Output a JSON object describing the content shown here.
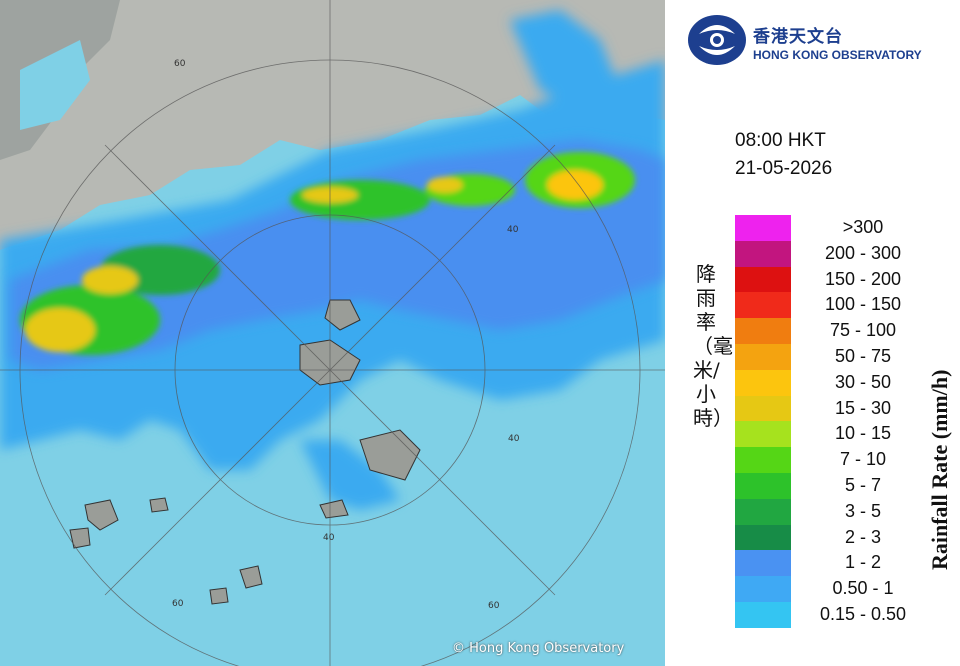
{
  "header": {
    "logo_zh": "香港天文台",
    "logo_en": "HONG KONG OBSERVATORY",
    "time": "08:00 HKT",
    "date": "21-05-2026"
  },
  "legend": {
    "title_en": "Rainfall Rate (mm/h)",
    "title_zh": "降雨率（毫米/小時）",
    "levels": [
      {
        "label": ">300",
        "color": "#ee22ee"
      },
      {
        "label": "200 - 300",
        "color": "#c2157f"
      },
      {
        "label": "150 - 200",
        "color": "#dd1111"
      },
      {
        "label": "100 - 150",
        "color": "#f02a1a"
      },
      {
        "label": "75 - 100",
        "color": "#f07d10"
      },
      {
        "label": "50 - 75",
        "color": "#f4a310"
      },
      {
        "label": "30 - 50",
        "color": "#fcc50e"
      },
      {
        "label": "15 - 30",
        "color": "#e6c814"
      },
      {
        "label": "10 - 15",
        "color": "#a6e21e"
      },
      {
        "label": "7 - 10",
        "color": "#55d616"
      },
      {
        "label": "5 - 7",
        "color": "#2dc22a"
      },
      {
        "label": "3 - 5",
        "color": "#21a741"
      },
      {
        "label": "2 - 3",
        "color": "#178c47"
      },
      {
        "label": "1 - 2",
        "color": "#4a92f2"
      },
      {
        "label": "0.50 - 1",
        "color": "#3fa9f4"
      },
      {
        "label": "0.15 - 0.50",
        "color": "#34c5f2"
      }
    ]
  },
  "map": {
    "range_ring_labels": [
      "40",
      "40",
      "40",
      "60",
      "60",
      "60"
    ],
    "copyright": "© Hong Kong Observatory",
    "sea_color": "#7fd0e6",
    "land_color": "#b7b9b4"
  }
}
